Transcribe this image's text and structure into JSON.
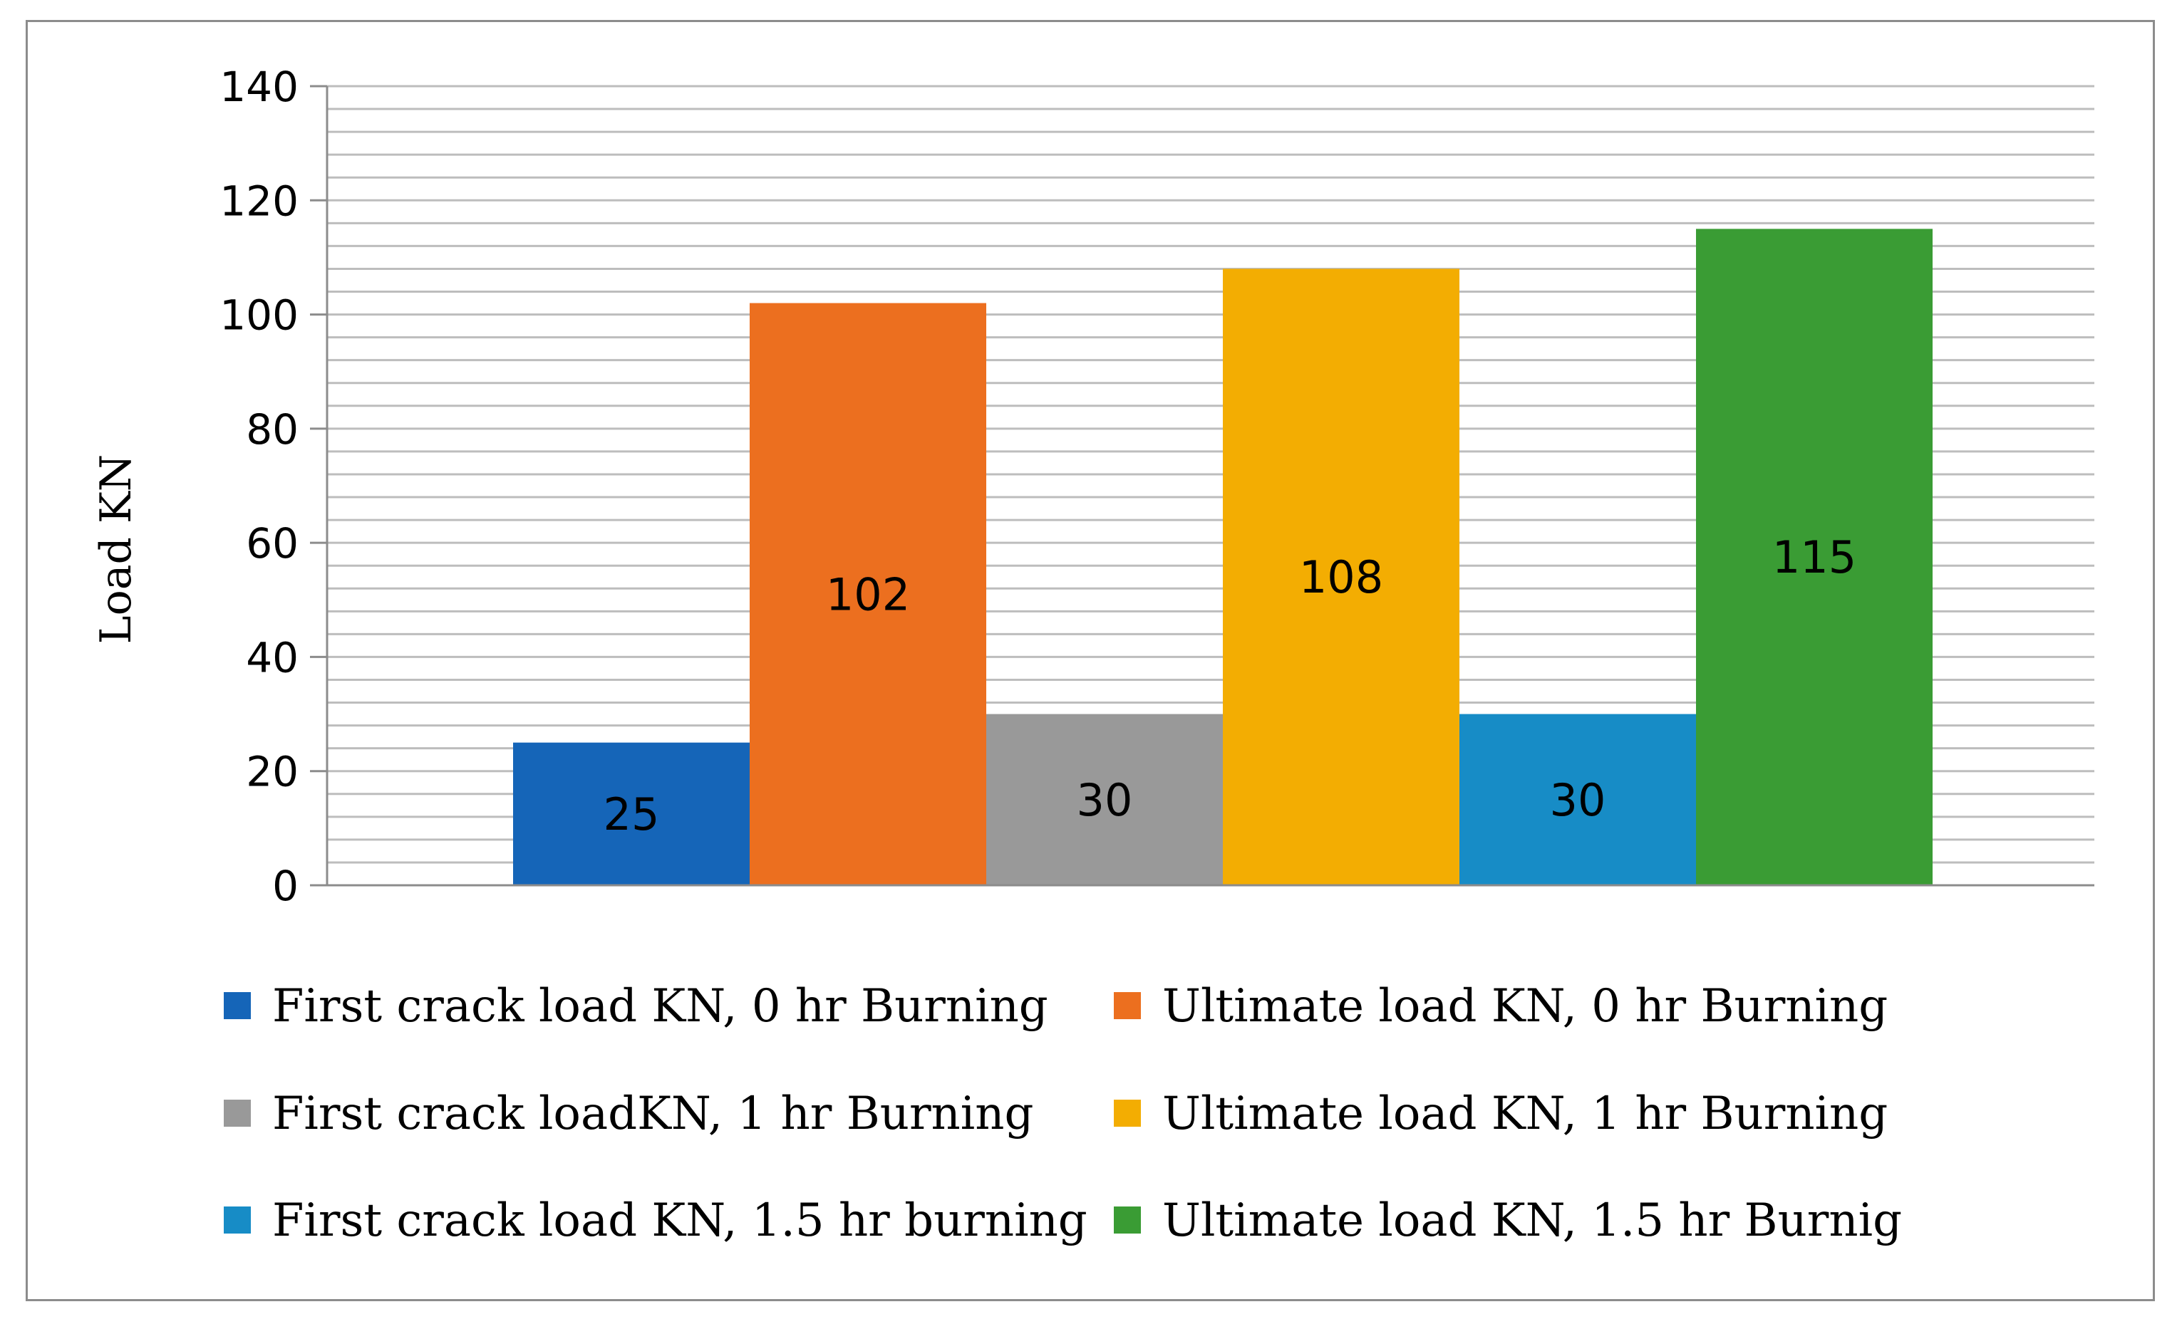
{
  "chart_data": {
    "type": "bar",
    "title": "",
    "xlabel": "",
    "ylabel": "Load KN",
    "ylim": [
      0,
      140
    ],
    "major_ticks": [
      0,
      20,
      40,
      60,
      80,
      100,
      120,
      140
    ],
    "minor_step": 4,
    "grid": true,
    "legend_position": "bottom",
    "series": [
      {
        "name": "First crack load KN, 0 hr Burning",
        "value": 25,
        "label": "25",
        "color": "#1565b8"
      },
      {
        "name": "Ultimate load KN, 0 hr Burning",
        "value": 102,
        "label": "102",
        "color": "#ec6f1f"
      },
      {
        "name": "First crack loadKN, 1 hr Burning",
        "value": 30,
        "label": "30",
        "color": "#999999"
      },
      {
        "name": "Ultimate load KN, 1 hr Burning",
        "value": 108,
        "label": "108",
        "color": "#f3ad02"
      },
      {
        "name": "First crack load KN, 1.5 hr burning",
        "value": 30,
        "label": "30",
        "color": "#178cc6"
      },
      {
        "name": "Ultimate load KN, 1.5 hr Burnig",
        "value": 115,
        "label": "115",
        "color": "#3a9c34"
      }
    ]
  }
}
